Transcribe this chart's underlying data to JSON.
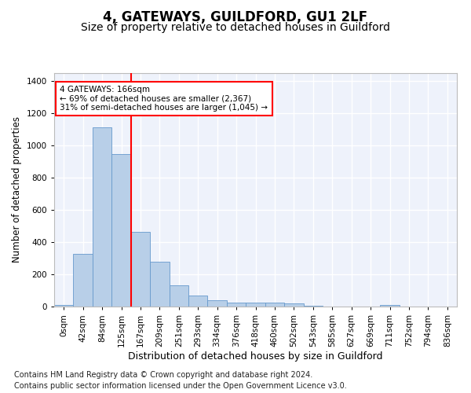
{
  "title1": "4, GATEWAYS, GUILDFORD, GU1 2LF",
  "title2": "Size of property relative to detached houses in Guildford",
  "xlabel": "Distribution of detached houses by size in Guildford",
  "ylabel": "Number of detached properties",
  "footnote1": "Contains HM Land Registry data © Crown copyright and database right 2024.",
  "footnote2": "Contains public sector information licensed under the Open Government Licence v3.0.",
  "bin_labels": [
    "0sqm",
    "42sqm",
    "84sqm",
    "125sqm",
    "167sqm",
    "209sqm",
    "251sqm",
    "293sqm",
    "334sqm",
    "376sqm",
    "418sqm",
    "460sqm",
    "502sqm",
    "543sqm",
    "585sqm",
    "627sqm",
    "669sqm",
    "711sqm",
    "752sqm",
    "794sqm",
    "836sqm"
  ],
  "bar_values": [
    8,
    328,
    1110,
    946,
    465,
    278,
    130,
    70,
    40,
    22,
    25,
    25,
    18,
    3,
    0,
    0,
    0,
    12,
    0,
    0,
    0
  ],
  "bar_color": "#b8cfe8",
  "bar_edge_color": "#6699cc",
  "vline_x_idx": 4,
  "vline_color": "red",
  "annotation_text": "4 GATEWAYS: 166sqm\n← 69% of detached houses are smaller (2,367)\n31% of semi-detached houses are larger (1,045) →",
  "annotation_box_color": "red",
  "ylim": [
    0,
    1450
  ],
  "yticks": [
    0,
    200,
    400,
    600,
    800,
    1000,
    1200,
    1400
  ],
  "background_color": "#eef2fb",
  "grid_color": "white",
  "title1_fontsize": 12,
  "title2_fontsize": 10,
  "xlabel_fontsize": 9,
  "ylabel_fontsize": 8.5,
  "tick_fontsize": 7.5,
  "footnote_fontsize": 7
}
